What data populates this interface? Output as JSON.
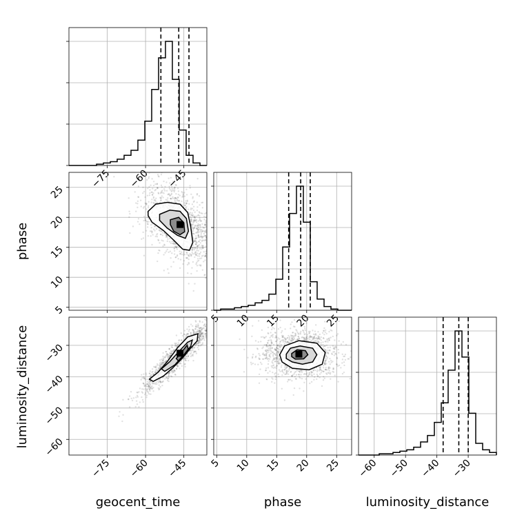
{
  "chart_data": {
    "type": "corner",
    "parameters": [
      "geocent_time",
      "phase",
      "luminosity_distance"
    ],
    "axis_labels": {
      "x": [
        "geocent_time",
        "phase",
        "luminosity_distance"
      ],
      "y": [
        "phase",
        "luminosity_distance"
      ]
    },
    "ranges": {
      "geocent_time": [
        -90,
        -36
      ],
      "phase": [
        4.5,
        27.5
      ],
      "luminosity_distance": [
        -65,
        -21
      ]
    },
    "ticks": {
      "geocent_time": [
        -75,
        -60,
        -45
      ],
      "phase": [
        5,
        10,
        15,
        20,
        25
      ],
      "luminosity_distance": [
        -60,
        -50,
        -40,
        -30
      ]
    },
    "tick_labels": {
      "geocent_time": [
        "−75",
        "−60",
        "−45"
      ],
      "phase": [
        "5",
        "10",
        "15",
        "20",
        "25"
      ],
      "luminosity_distance": [
        "−60",
        "−50",
        "−40",
        "−30"
      ]
    },
    "histograms": {
      "geocent_time": {
        "edges": [
          -90,
          -87.3,
          -84.6,
          -81.9,
          -79.2,
          -76.5,
          -73.8,
          -71.1,
          -68.4,
          -65.7,
          -63,
          -60.3,
          -57.6,
          -54.9,
          -52.2,
          -49.5,
          -46.8,
          -44.1,
          -41.4,
          -38.7,
          -36
        ],
        "heights": [
          0,
          0,
          0,
          0,
          1,
          2,
          3,
          5,
          8,
          12,
          20,
          35,
          60,
          85,
          98,
          68,
          28,
          8,
          2,
          0
        ]
      },
      "phase": {
        "edges": [
          4.5,
          5.65,
          6.8,
          7.95,
          9.1,
          10.25,
          11.4,
          12.55,
          13.7,
          14.85,
          16,
          17.15,
          18.3,
          19.45,
          20.6,
          21.75,
          22.9,
          24.05,
          25.2,
          26.35,
          27.5
        ],
        "heights": [
          0,
          1,
          1,
          2,
          3,
          4,
          6,
          8,
          13,
          25,
          51,
          78,
          100,
          71,
          23,
          9,
          3,
          1,
          0,
          0
        ]
      },
      "luminosity_distance": {
        "edges": [
          -65,
          -62.8,
          -60.6,
          -58.4,
          -56.2,
          -54,
          -51.8,
          -49.6,
          -47.4,
          -45.2,
          -43,
          -40.8,
          -38.6,
          -36.4,
          -34.2,
          -32,
          -29.8,
          -27.6,
          -25.4,
          -23.2,
          -21
        ],
        "heights": [
          0,
          0,
          0,
          1,
          1,
          2,
          3,
          4,
          6,
          10,
          15,
          25,
          40,
          65,
          95,
          75,
          32,
          9,
          4,
          2
        ]
      }
    },
    "quantiles": {
      "geocent_time": [
        -54,
        -47,
        -43
      ],
      "phase": [
        17,
        19,
        20.6
      ],
      "luminosity_distance": [
        -38,
        -33,
        -30
      ]
    },
    "contours": [
      {
        "x_param": "geocent_time",
        "y_param": "phase",
        "peak": [
          -46.5,
          18.8
        ],
        "levels": [
          [
            [
              -59,
              21
            ],
            [
              -56,
              22.2
            ],
            [
              -51.5,
              22.5
            ],
            [
              -46.5,
              22.2
            ],
            [
              -43.5,
              20.8
            ],
            [
              -42.3,
              18.4
            ],
            [
              -41.5,
              15.8
            ],
            [
              -42.8,
              14.5
            ],
            [
              -45.5,
              14.7
            ],
            [
              -49,
              16.2
            ],
            [
              -53,
              17.8
            ],
            [
              -57.5,
              19.2
            ],
            [
              -59,
              20.3
            ],
            [
              -59,
              21
            ]
          ],
          [
            [
              -54.5,
              20.5
            ],
            [
              -50.5,
              21.2
            ],
            [
              -46.5,
              21
            ],
            [
              -44,
              19.8
            ],
            [
              -43.2,
              17.7
            ],
            [
              -44.4,
              16.5
            ],
            [
              -47.5,
              17
            ],
            [
              -51.5,
              18.2
            ],
            [
              -54.5,
              19.5
            ],
            [
              -54.5,
              20.5
            ]
          ],
          [
            [
              -50.3,
              19.6
            ],
            [
              -47,
              20
            ],
            [
              -45,
              19.1
            ],
            [
              -44.7,
              17.6
            ],
            [
              -46.5,
              17.1
            ],
            [
              -49,
              17.7
            ],
            [
              -50.3,
              18.8
            ],
            [
              -50.3,
              19.6
            ]
          ]
        ]
      },
      {
        "x_param": "geocent_time",
        "y_param": "luminosity_distance",
        "peak": [
          -46.5,
          -32.5
        ],
        "levels": [
          [
            [
              -58.5,
              -40.8
            ],
            [
              -55,
              -38.5
            ],
            [
              -51.5,
              -35.2
            ],
            [
              -47.5,
              -30.8
            ],
            [
              -43.5,
              -27.3
            ],
            [
              -39.5,
              -26.3
            ],
            [
              -39.8,
              -28.6
            ],
            [
              -42.5,
              -31
            ],
            [
              -45.5,
              -34
            ],
            [
              -49.5,
              -37.3
            ],
            [
              -53,
              -39.8
            ],
            [
              -57,
              -41.5
            ],
            [
              -58.5,
              -40.8
            ]
          ],
          [
            [
              -53.8,
              -37.5
            ],
            [
              -50.5,
              -35.2
            ],
            [
              -47,
              -32
            ],
            [
              -43.5,
              -29
            ],
            [
              -41.7,
              -28.3
            ],
            [
              -42.3,
              -30.3
            ],
            [
              -45,
              -33
            ],
            [
              -48.5,
              -36.2
            ],
            [
              -52.5,
              -38.3
            ],
            [
              -53.8,
              -37.5
            ]
          ],
          [
            [
              -48,
              -34.2
            ],
            [
              -46,
              -32.3
            ],
            [
              -43.7,
              -29.9
            ],
            [
              -43.3,
              -31.2
            ],
            [
              -45,
              -33.2
            ],
            [
              -47.1,
              -35
            ],
            [
              -48,
              -34.2
            ]
          ]
        ]
      },
      {
        "x_param": "phase",
        "y_param": "luminosity_distance",
        "peak": [
          18.7,
          -32.8
        ],
        "levels": [
          [
            [
              15.5,
              -33
            ],
            [
              16.3,
              -30.2
            ],
            [
              18.7,
              -28.5
            ],
            [
              21.7,
              -29.3
            ],
            [
              23.1,
              -32.3
            ],
            [
              22.6,
              -36
            ],
            [
              20.4,
              -37.8
            ],
            [
              17.6,
              -37.3
            ],
            [
              15.9,
              -35.3
            ],
            [
              15.5,
              -33
            ]
          ],
          [
            [
              16.6,
              -32.8
            ],
            [
              17.3,
              -30.9
            ],
            [
              18.9,
              -30.2
            ],
            [
              21,
              -30.9
            ],
            [
              21.7,
              -33
            ],
            [
              21,
              -35.3
            ],
            [
              19.3,
              -36
            ],
            [
              17.6,
              -35.3
            ],
            [
              16.6,
              -34.2
            ],
            [
              16.6,
              -32.8
            ]
          ],
          [
            [
              17.5,
              -32.6
            ],
            [
              18.4,
              -31.4
            ],
            [
              19.8,
              -31.7
            ],
            [
              20.2,
              -33
            ],
            [
              19.5,
              -34.3
            ],
            [
              18.1,
              -34.4
            ],
            [
              17.5,
              -33.6
            ],
            [
              17.5,
              -32.6
            ]
          ]
        ]
      }
    ],
    "grid": true
  }
}
